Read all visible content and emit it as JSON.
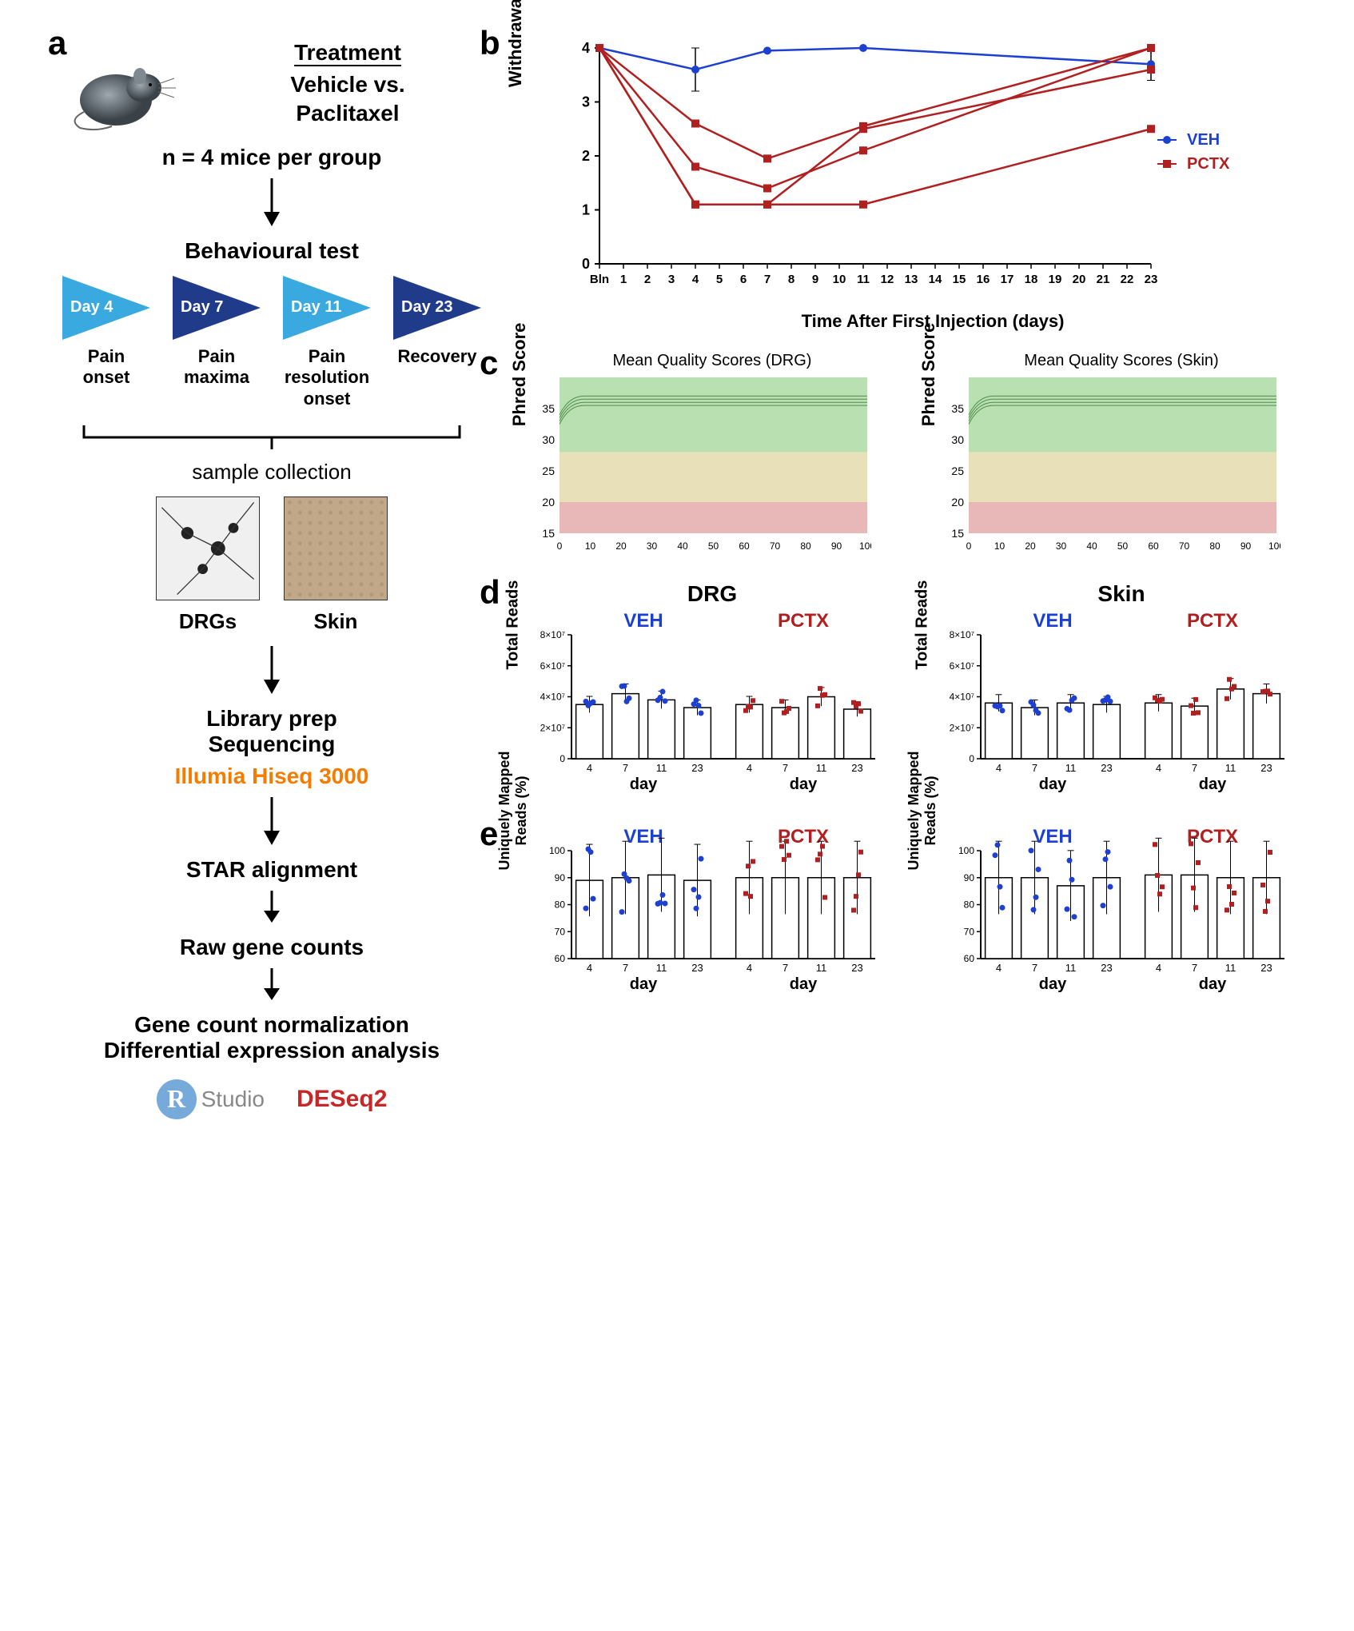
{
  "panel_a": {
    "label": "a",
    "treatment_header": "Treatment",
    "treatment_lines": [
      "Vehicle vs.",
      "Paclitaxel"
    ],
    "n_text": "n = 4 mice per group",
    "step_behaviour": "Behavioural test",
    "timeline": [
      {
        "day": "Day 4",
        "caption": "Pain\nonset",
        "color": "#3aa9e0"
      },
      {
        "day": "Day 7",
        "caption": "Pain\nmaxima",
        "color": "#1f3b8a"
      },
      {
        "day": "Day 11",
        "caption": "Pain\nresolution\nonset",
        "color": "#3aa9e0"
      },
      {
        "day": "Day 23",
        "caption": "Recovery",
        "color": "#1f3b8a"
      }
    ],
    "sample_collection": "sample collection",
    "sample_types": [
      "DRGs",
      "Skin"
    ],
    "step_library": "Library prep\nSequencing",
    "illumina": "Illumia Hiseq 3000",
    "step_star": "STAR alignment",
    "step_raw": "Raw gene counts",
    "step_norm": "Gene count normalization\nDifferential expression analysis",
    "rstudio": "Studio",
    "deseq2": "DESeq2"
  },
  "panel_b": {
    "label": "b",
    "ylabel": "Withdrawal Threshold (g)",
    "xlabel": "Time After First Injection (days)",
    "xticks": [
      "Bln",
      "1",
      "2",
      "3",
      "4",
      "5",
      "6",
      "7",
      "8",
      "9",
      "10",
      "11",
      "12",
      "13",
      "14",
      "15",
      "16",
      "17",
      "18",
      "19",
      "20",
      "21",
      "22",
      "23"
    ],
    "ylim": [
      0,
      4
    ],
    "ytick_step": 1,
    "legend": [
      {
        "name": "VEH",
        "color": "#1e40d0",
        "marker": "circle"
      },
      {
        "name": "PCTX",
        "color": "#b02020",
        "marker": "square"
      }
    ],
    "series_veh": [
      {
        "x": "Bln",
        "y": 4.0
      },
      {
        "x": "4",
        "y": 3.6,
        "err": 0.4
      },
      {
        "x": "7",
        "y": 3.95
      },
      {
        "x": "11",
        "y": 4.0
      },
      {
        "x": "23",
        "y": 3.7,
        "err": 0.3
      }
    ],
    "series_pctx": [
      [
        {
          "x": "Bln",
          "y": 4.0
        },
        {
          "x": "4",
          "y": 2.6
        },
        {
          "x": "7",
          "y": 1.95
        },
        {
          "x": "11",
          "y": 2.55
        },
        {
          "x": "23",
          "y": 4.0
        }
      ],
      [
        {
          "x": "Bln",
          "y": 4.0
        },
        {
          "x": "4",
          "y": 1.8
        },
        {
          "x": "7",
          "y": 1.4
        },
        {
          "x": "11",
          "y": 2.1
        },
        {
          "x": "23",
          "y": 4.0
        }
      ],
      [
        {
          "x": "Bln",
          "y": 4.0
        },
        {
          "x": "4",
          "y": 1.1
        },
        {
          "x": "7",
          "y": 1.1
        },
        {
          "x": "11",
          "y": 2.5
        },
        {
          "x": "23",
          "y": 3.6
        }
      ],
      [
        {
          "x": "Bln",
          "y": 4.0
        },
        {
          "x": "4",
          "y": 1.1
        },
        {
          "x": "7",
          "y": 1.1
        },
        {
          "x": "11",
          "y": 1.1
        },
        {
          "x": "23",
          "y": 2.5
        }
      ]
    ]
  },
  "panel_c": {
    "label": "c",
    "charts": [
      {
        "title": "Mean Quality Scores (DRG)"
      },
      {
        "title": "Mean Quality Scores (Skin)"
      }
    ],
    "ylabel": "Phred Score",
    "ylim": [
      15,
      40
    ],
    "yticks": [
      15,
      20,
      25,
      30,
      35
    ],
    "xlim": [
      0,
      100
    ],
    "xticks": [
      0,
      10,
      20,
      30,
      40,
      50,
      60,
      70,
      80,
      90,
      100
    ],
    "bands": [
      {
        "from": 28,
        "to": 40,
        "color": "#b8e0b0"
      },
      {
        "from": 20,
        "to": 28,
        "color": "#e8e0b8"
      },
      {
        "from": 15,
        "to": 20,
        "color": "#e8b8b8"
      }
    ],
    "line_color": "#2a6b2a",
    "line_y_approx": 36
  },
  "panel_d": {
    "label": "d",
    "ylabel": "Total Reads",
    "xlabel": "day",
    "tissue_left": "DRG",
    "tissue_right": "Skin",
    "groups": [
      "VEH",
      "PCTX"
    ],
    "days": [
      "4",
      "7",
      "11",
      "23"
    ],
    "ylim": [
      0,
      80000000.0
    ],
    "yticks": [
      "0",
      "2×10⁷",
      "4×10⁷",
      "6×10⁷",
      "8×10⁷"
    ],
    "data": {
      "DRG": {
        "VEH": [
          35000000.0,
          42000000.0,
          38000000.0,
          33000000.0
        ],
        "PCTX": [
          35000000.0,
          33000000.0,
          40000000.0,
          32000000.0
        ]
      },
      "Skin": {
        "VEH": [
          36000000.0,
          33000000.0,
          36000000.0,
          35000000.0
        ],
        "PCTX": [
          36000000.0,
          34000000.0,
          45000000.0,
          42000000.0
        ]
      }
    },
    "veh_color": "#1e40d0",
    "pctx_color": "#b02020"
  },
  "panel_e": {
    "label": "e",
    "ylabel": "Uniquely Mapped\nReads (%)",
    "xlabel": "day",
    "groups": [
      "VEH",
      "PCTX"
    ],
    "days": [
      "4",
      "7",
      "11",
      "23"
    ],
    "ylim": [
      60,
      100
    ],
    "yticks": [
      60,
      70,
      80,
      90,
      100
    ],
    "data": {
      "DRG": {
        "VEH": [
          89,
          90,
          91,
          89
        ],
        "PCTX": [
          90,
          90,
          90,
          90
        ]
      },
      "Skin": {
        "VEH": [
          90,
          90,
          87,
          90
        ],
        "PCTX": [
          91,
          91,
          90,
          90
        ]
      }
    },
    "veh_color": "#1e40d0",
    "pctx_color": "#b02020"
  }
}
